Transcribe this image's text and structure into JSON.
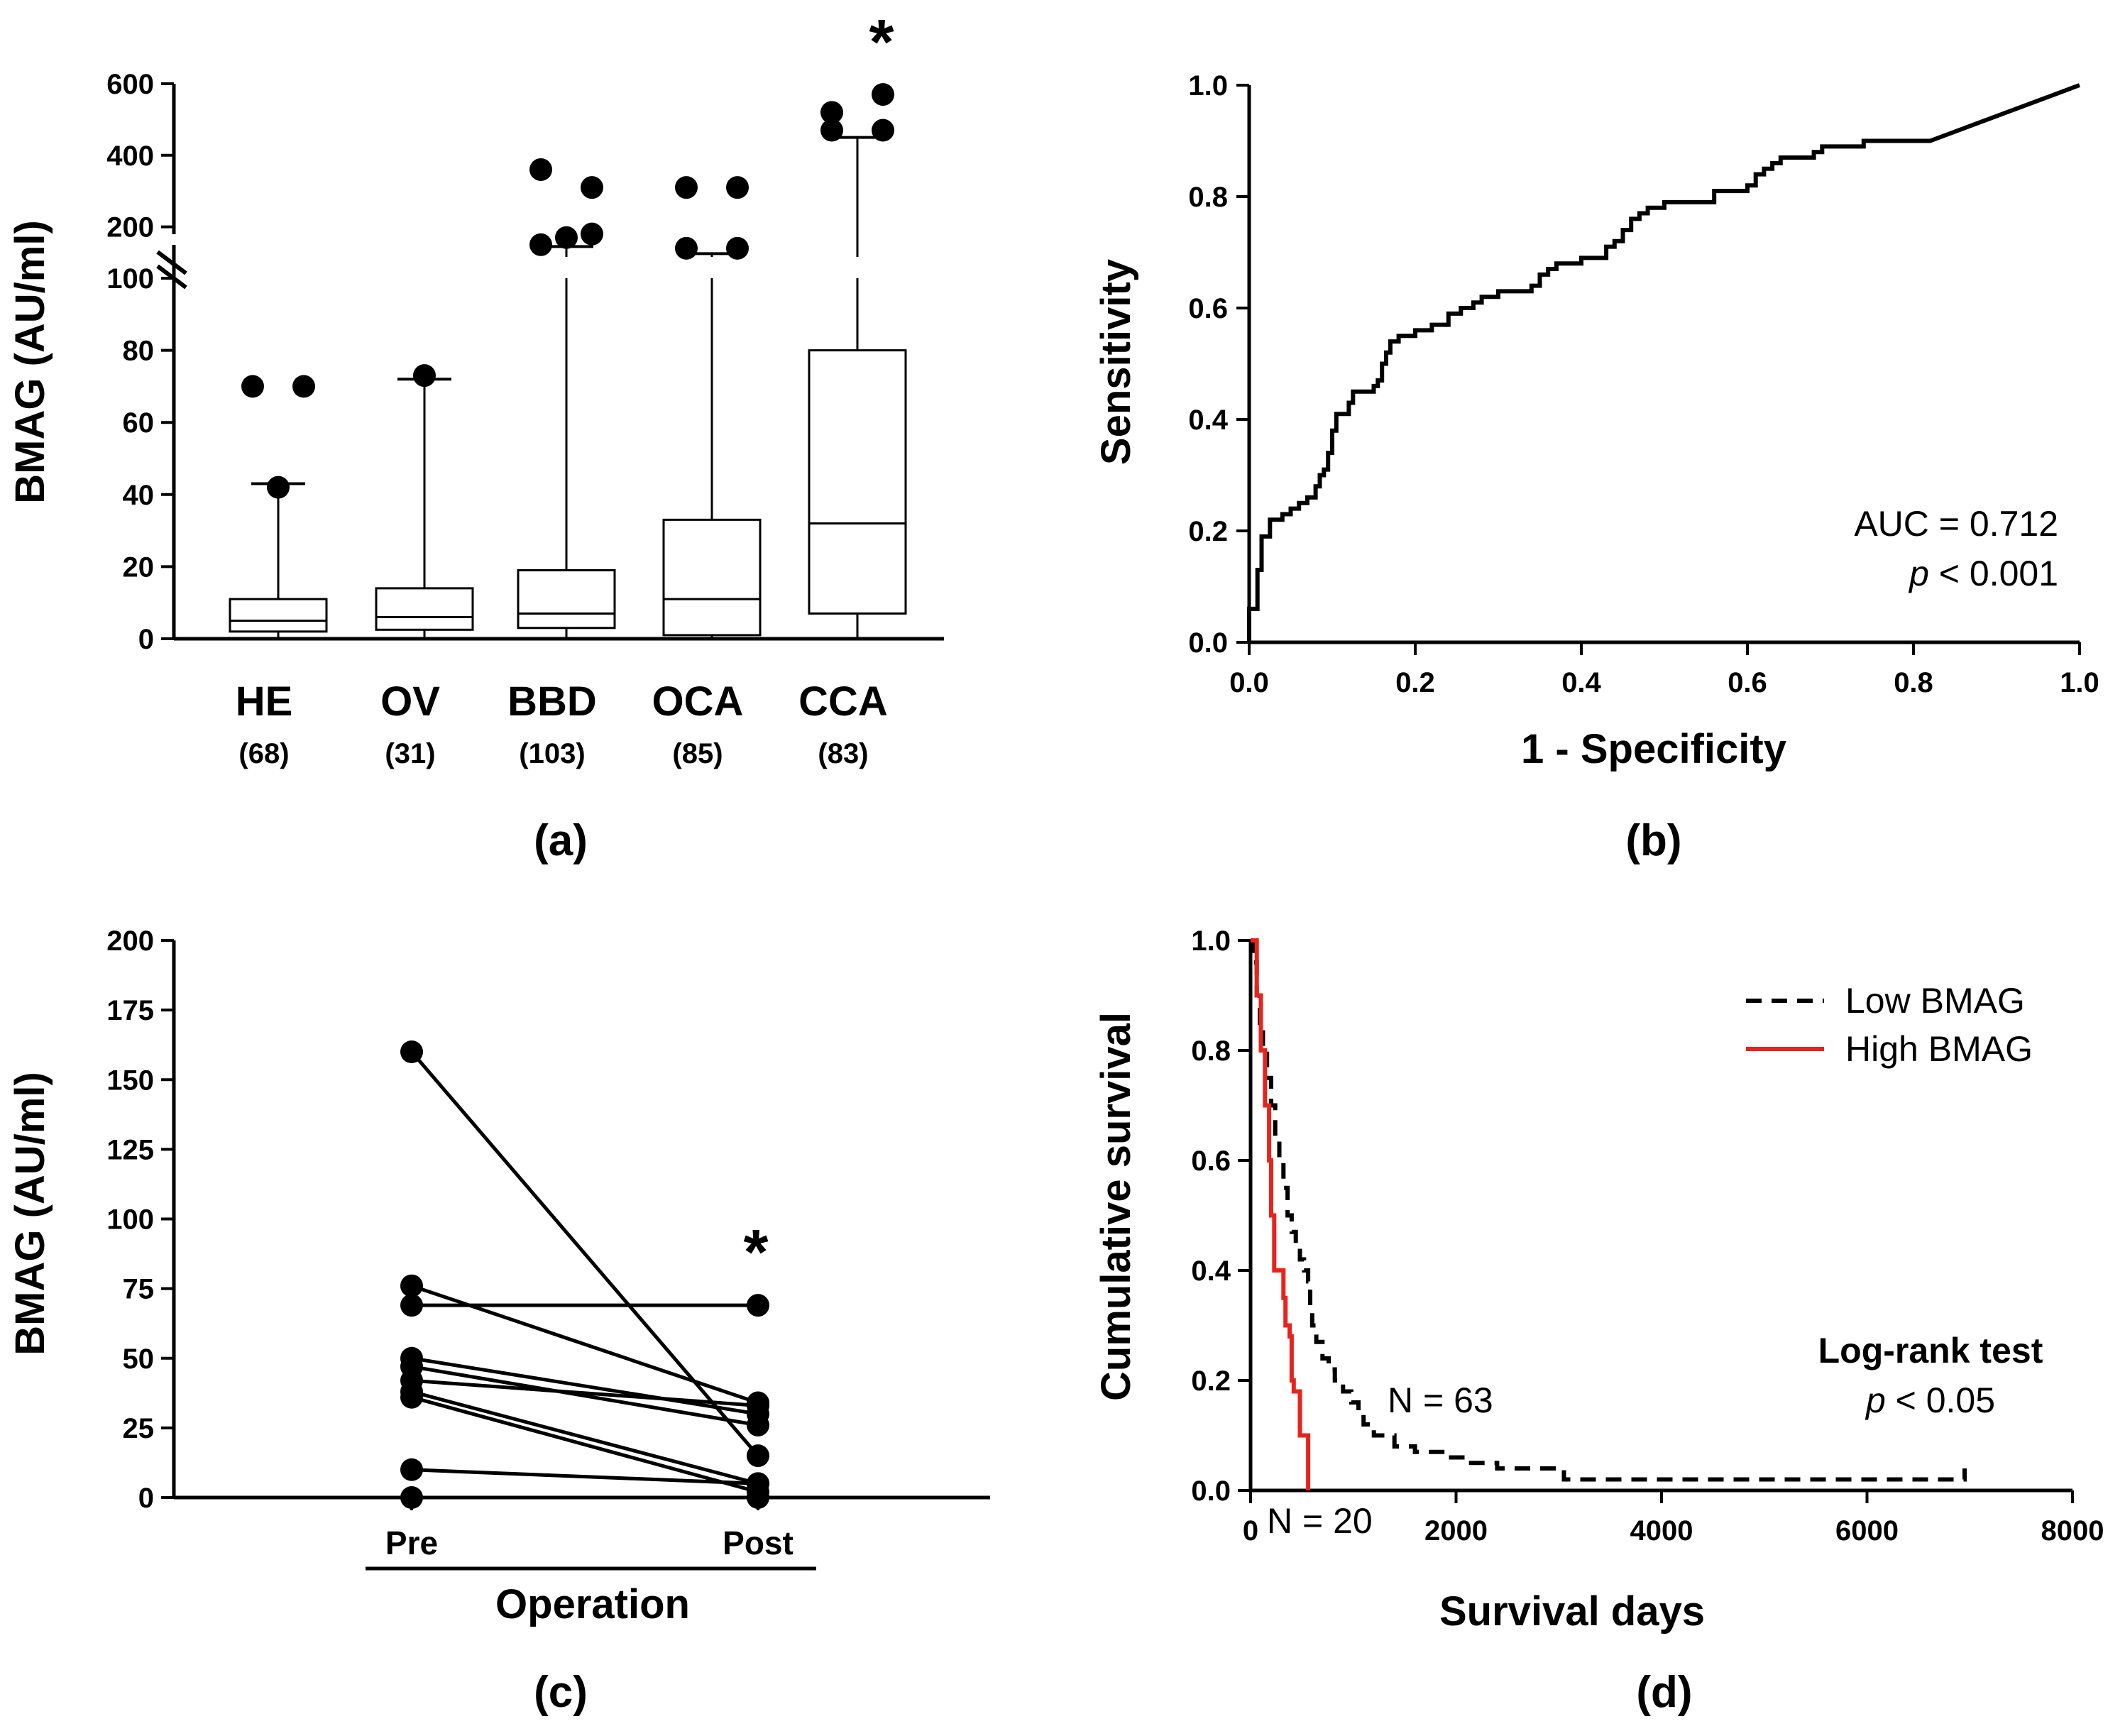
{
  "chart_data": [
    {
      "type": "box",
      "panel_label": "(a)",
      "ylabel": "BMAG (AU/ml)",
      "y_axis_break": true,
      "yticks_lower": [
        "0",
        "20",
        "40",
        "60",
        "80",
        "100"
      ],
      "yticks_upper": [
        "200",
        "400",
        "600"
      ],
      "ylim_lower": [
        0,
        100
      ],
      "ylim_upper": [
        100,
        600
      ],
      "categories": [
        {
          "name": "HE",
          "n": "(68)",
          "min": 0,
          "q1": 2,
          "median": 5,
          "q3": 11,
          "whisker_high": 43,
          "outliers": [
            42,
            70,
            70
          ],
          "outlier_offsets": [
            0,
            -1,
            1
          ]
        },
        {
          "name": "OV",
          "n": "(31)",
          "min": 0,
          "q1": 2.5,
          "median": 6,
          "q3": 14,
          "whisker_high": 72,
          "outliers": [
            73
          ],
          "outlier_offsets": [
            0
          ]
        },
        {
          "name": "BBD",
          "n": "(103)",
          "min": 0,
          "q1": 3,
          "median": 7,
          "q3": 19,
          "whisker_high": 145,
          "outliers": [
            150,
            170,
            180,
            310,
            360
          ],
          "outlier_offsets": [
            -1,
            0,
            1,
            1,
            -1
          ]
        },
        {
          "name": "OCA",
          "n": "(85)",
          "min": 0,
          "q1": 1,
          "median": 11,
          "q3": 33,
          "whisker_high": 125,
          "outliers": [
            140,
            140,
            310,
            310
          ],
          "outlier_offsets": [
            -1,
            1,
            -1,
            1
          ]
        },
        {
          "name": "CCA",
          "n": "(83)",
          "min": 0,
          "q1": 7,
          "median": 32,
          "q3": 80,
          "whisker_high": 450,
          "outliers": [
            470,
            470,
            520,
            570
          ],
          "outlier_offsets": [
            -1,
            1,
            -1,
            1
          ]
        }
      ],
      "significance_marker": "*",
      "significance_category": "CCA"
    },
    {
      "type": "line",
      "panel_label": "(b)",
      "xlabel": "1 - Specificity",
      "ylabel": "Sensitivity",
      "xlim": [
        0,
        1
      ],
      "ylim": [
        0,
        1
      ],
      "xticks": [
        "0.0",
        "0.2",
        "0.4",
        "0.6",
        "0.8",
        "1.0"
      ],
      "yticks": [
        "0.0",
        "0.2",
        "0.4",
        "0.6",
        "0.8",
        "1.0"
      ],
      "annotation_auc": "AUC = 0.712",
      "annotation_p_symbol": "p",
      "annotation_p_rest": " < 0.001",
      "roc_points": [
        [
          0,
          0
        ],
        [
          0,
          0.06
        ],
        [
          0.01,
          0.06
        ],
        [
          0.01,
          0.13
        ],
        [
          0.015,
          0.13
        ],
        [
          0.015,
          0.19
        ],
        [
          0.025,
          0.19
        ],
        [
          0.025,
          0.22
        ],
        [
          0.04,
          0.22
        ],
        [
          0.04,
          0.23
        ],
        [
          0.05,
          0.23
        ],
        [
          0.05,
          0.24
        ],
        [
          0.06,
          0.24
        ],
        [
          0.06,
          0.25
        ],
        [
          0.07,
          0.25
        ],
        [
          0.07,
          0.26
        ],
        [
          0.08,
          0.26
        ],
        [
          0.08,
          0.28
        ],
        [
          0.085,
          0.28
        ],
        [
          0.085,
          0.3
        ],
        [
          0.09,
          0.3
        ],
        [
          0.09,
          0.31
        ],
        [
          0.095,
          0.31
        ],
        [
          0.095,
          0.34
        ],
        [
          0.1,
          0.34
        ],
        [
          0.1,
          0.38
        ],
        [
          0.105,
          0.38
        ],
        [
          0.105,
          0.41
        ],
        [
          0.12,
          0.41
        ],
        [
          0.12,
          0.43
        ],
        [
          0.125,
          0.43
        ],
        [
          0.125,
          0.45
        ],
        [
          0.14,
          0.45
        ],
        [
          0.14,
          0.45
        ],
        [
          0.15,
          0.45
        ],
        [
          0.15,
          0.46
        ],
        [
          0.155,
          0.46
        ],
        [
          0.155,
          0.47
        ],
        [
          0.16,
          0.47
        ],
        [
          0.16,
          0.5
        ],
        [
          0.165,
          0.5
        ],
        [
          0.165,
          0.52
        ],
        [
          0.17,
          0.52
        ],
        [
          0.17,
          0.54
        ],
        [
          0.18,
          0.54
        ],
        [
          0.18,
          0.55
        ],
        [
          0.2,
          0.55
        ],
        [
          0.2,
          0.56
        ],
        [
          0.22,
          0.56
        ],
        [
          0.22,
          0.57
        ],
        [
          0.24,
          0.57
        ],
        [
          0.24,
          0.59
        ],
        [
          0.255,
          0.59
        ],
        [
          0.255,
          0.6
        ],
        [
          0.27,
          0.6
        ],
        [
          0.27,
          0.61
        ],
        [
          0.28,
          0.61
        ],
        [
          0.28,
          0.62
        ],
        [
          0.3,
          0.62
        ],
        [
          0.3,
          0.63
        ],
        [
          0.34,
          0.63
        ],
        [
          0.34,
          0.64
        ],
        [
          0.35,
          0.64
        ],
        [
          0.35,
          0.66
        ],
        [
          0.36,
          0.66
        ],
        [
          0.36,
          0.67
        ],
        [
          0.37,
          0.67
        ],
        [
          0.37,
          0.68
        ],
        [
          0.4,
          0.68
        ],
        [
          0.4,
          0.69
        ],
        [
          0.43,
          0.69
        ],
        [
          0.43,
          0.71
        ],
        [
          0.44,
          0.71
        ],
        [
          0.44,
          0.72
        ],
        [
          0.45,
          0.72
        ],
        [
          0.45,
          0.74
        ],
        [
          0.46,
          0.74
        ],
        [
          0.46,
          0.76
        ],
        [
          0.47,
          0.76
        ],
        [
          0.47,
          0.77
        ],
        [
          0.48,
          0.77
        ],
        [
          0.48,
          0.78
        ],
        [
          0.5,
          0.78
        ],
        [
          0.5,
          0.79
        ],
        [
          0.56,
          0.79
        ],
        [
          0.56,
          0.81
        ],
        [
          0.6,
          0.81
        ],
        [
          0.6,
          0.82
        ],
        [
          0.61,
          0.82
        ],
        [
          0.61,
          0.84
        ],
        [
          0.62,
          0.84
        ],
        [
          0.62,
          0.85
        ],
        [
          0.63,
          0.85
        ],
        [
          0.63,
          0.86
        ],
        [
          0.64,
          0.86
        ],
        [
          0.64,
          0.87
        ],
        [
          0.68,
          0.87
        ],
        [
          0.68,
          0.88
        ],
        [
          0.69,
          0.88
        ],
        [
          0.69,
          0.89
        ],
        [
          0.74,
          0.89
        ],
        [
          0.74,
          0.9
        ],
        [
          0.82,
          0.9
        ],
        [
          1.0,
          1.0
        ]
      ]
    },
    {
      "type": "paired_line",
      "panel_label": "(c)",
      "ylabel": "BMAG (AU/ml)",
      "xlabel": "Operation",
      "categories": [
        "Pre",
        "Post"
      ],
      "ylim": [
        0,
        200
      ],
      "yticks": [
        "0",
        "25",
        "50",
        "75",
        "100",
        "125",
        "150",
        "175",
        "200"
      ],
      "pairs": [
        [
          160,
          15
        ],
        [
          76,
          34
        ],
        [
          69,
          69
        ],
        [
          50,
          30
        ],
        [
          47,
          26
        ],
        [
          42,
          33
        ],
        [
          38,
          5
        ],
        [
          36,
          2
        ],
        [
          10,
          5
        ]
      ],
      "extra_pre_points": [
        0
      ],
      "extra_post_points": [
        0
      ],
      "significance_marker": "*"
    },
    {
      "type": "line",
      "panel_label": "(d)",
      "xlabel": "Survival days",
      "ylabel": "Cumulative survival",
      "xlim": [
        0,
        8000
      ],
      "ylim": [
        0,
        1
      ],
      "xticks": [
        "0",
        "2000",
        "4000",
        "6000",
        "8000"
      ],
      "yticks": [
        "0.0",
        "0.2",
        "0.4",
        "0.6",
        "0.8",
        "1.0"
      ],
      "legend_position": "top-right",
      "series": [
        {
          "name": "Low BMAG",
          "color": "#000000",
          "dash": true,
          "annotation": "N = 63",
          "points": [
            [
              0,
              1.0
            ],
            [
              30,
              0.96
            ],
            [
              60,
              0.9
            ],
            [
              90,
              0.85
            ],
            [
              120,
              0.8
            ],
            [
              160,
              0.75
            ],
            [
              200,
              0.7
            ],
            [
              240,
              0.64
            ],
            [
              280,
              0.6
            ],
            [
              320,
              0.55
            ],
            [
              360,
              0.5
            ],
            [
              400,
              0.47
            ],
            [
              440,
              0.44
            ],
            [
              480,
              0.42
            ],
            [
              520,
              0.4
            ],
            [
              560,
              0.38
            ],
            [
              580,
              0.33
            ],
            [
              600,
              0.3
            ],
            [
              640,
              0.27
            ],
            [
              700,
              0.24
            ],
            [
              760,
              0.22
            ],
            [
              820,
              0.2
            ],
            [
              900,
              0.18
            ],
            [
              980,
              0.16
            ],
            [
              1050,
              0.14
            ],
            [
              1100,
              0.12
            ],
            [
              1200,
              0.1
            ],
            [
              1400,
              0.08
            ],
            [
              1600,
              0.07
            ],
            [
              1900,
              0.06
            ],
            [
              2100,
              0.05
            ],
            [
              2400,
              0.04
            ],
            [
              3000,
              0.04
            ],
            [
              3050,
              0.02
            ],
            [
              6900,
              0.02
            ],
            [
              6950,
              0.04
            ]
          ]
        },
        {
          "name": "High BMAG",
          "color": "#e8231b",
          "dash": false,
          "annotation": "N = 20",
          "points": [
            [
              0,
              1.0
            ],
            [
              60,
              0.9
            ],
            [
              100,
              0.8
            ],
            [
              140,
              0.7
            ],
            [
              180,
              0.6
            ],
            [
              200,
              0.5
            ],
            [
              230,
              0.4
            ],
            [
              300,
              0.4
            ],
            [
              320,
              0.35
            ],
            [
              340,
              0.3
            ],
            [
              380,
              0.28
            ],
            [
              400,
              0.2
            ],
            [
              420,
              0.18
            ],
            [
              460,
              0.18
            ],
            [
              480,
              0.1
            ],
            [
              540,
              0.1
            ],
            [
              560,
              0.0
            ]
          ]
        }
      ],
      "annotation_title": "Log-rank test",
      "annotation_p_symbol": "p",
      "annotation_p_rest": " < 0.05"
    }
  ]
}
